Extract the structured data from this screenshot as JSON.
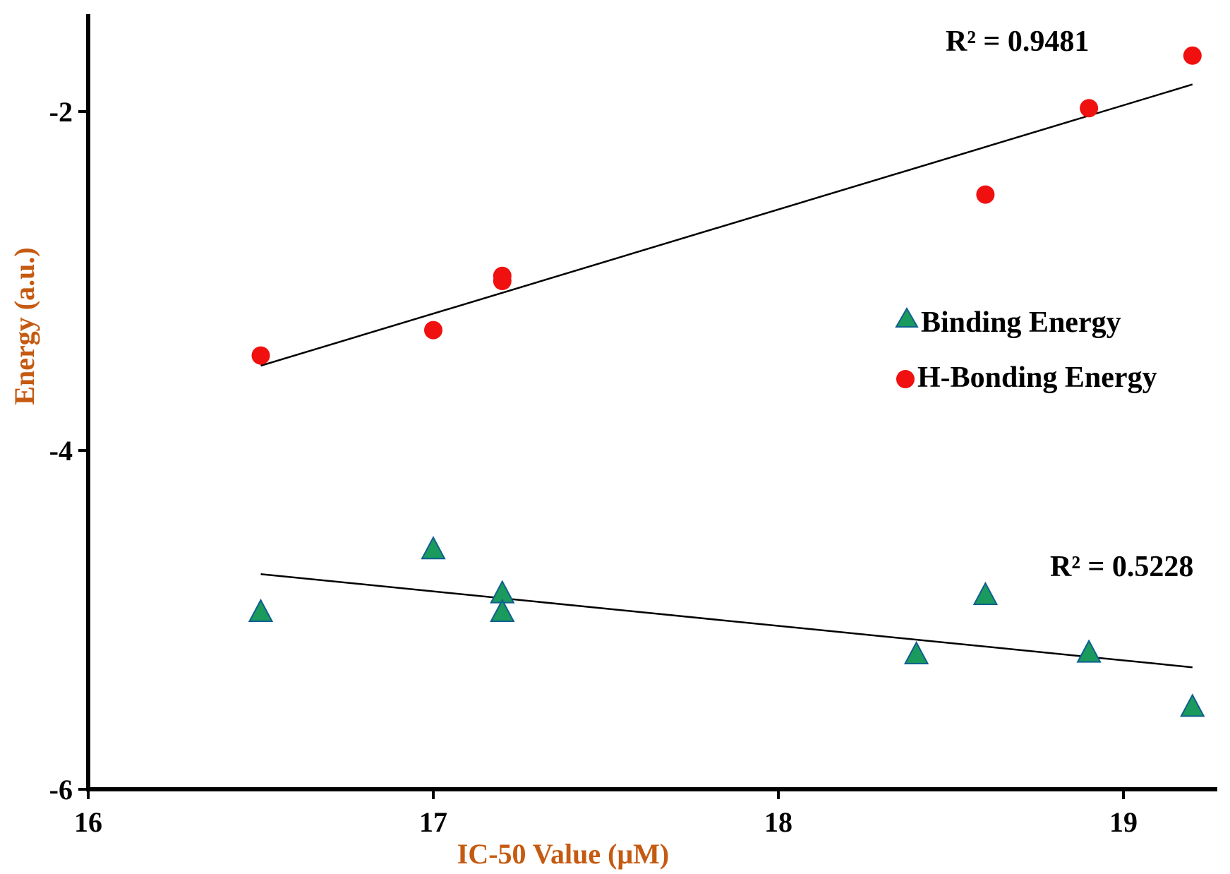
{
  "chart_data": {
    "type": "scatter",
    "title": "",
    "xlabel": "IC-50 Value (μM)",
    "ylabel": "Energy (a.u.)",
    "xlim": [
      16,
      19.28
    ],
    "ylim": [
      -6,
      -1.6
    ],
    "x_ticks": [
      16,
      17,
      18,
      19
    ],
    "y_ticks": [
      -2,
      -4,
      -6
    ],
    "grid": false,
    "legend_position": "right-middle",
    "colors": {
      "binding": "#1a9a5c",
      "binding_edge": "#0f5f8f",
      "hbond": "#f01010",
      "trend": "#000000",
      "axis": "#000000",
      "xlabel_color": "#c55a11",
      "ylabel_color": "#c55a11"
    },
    "series": [
      {
        "name": "Binding Energy",
        "marker": "triangle",
        "x": [
          16.5,
          17.0,
          17.2,
          17.2,
          18.4,
          18.6,
          18.9,
          19.2
        ],
        "y": [
          -4.95,
          -4.58,
          -4.84,
          -4.95,
          -5.2,
          -4.85,
          -5.19,
          -5.51
        ],
        "trendline": {
          "x": [
            16.5,
            19.2
          ],
          "y": [
            -4.73,
            -5.28
          ],
          "r2_label": "R² = 0.5228"
        }
      },
      {
        "name": "H-Bonding Energy",
        "marker": "circle",
        "x": [
          16.5,
          17.0,
          17.2,
          17.2,
          18.6,
          18.9,
          19.2
        ],
        "y": [
          -3.44,
          -3.29,
          -2.97,
          -3.0,
          -2.49,
          -1.98,
          -1.67
        ],
        "trendline": {
          "x": [
            16.5,
            19.2
          ],
          "y": [
            -3.5,
            -1.84
          ],
          "r2_label": "R² = 0.9481"
        }
      }
    ]
  }
}
